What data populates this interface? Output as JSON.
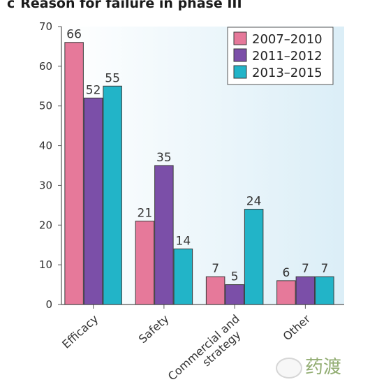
{
  "header": {
    "panel_letter": "c",
    "title": "Reason for failure in phase III"
  },
  "watermark": "药渡",
  "chart_data": {
    "type": "bar",
    "title": "Reason for failure in phase III",
    "xlabel": "",
    "ylabel": "",
    "ylim": [
      0,
      70
    ],
    "yticks": [
      0,
      10,
      20,
      30,
      40,
      50,
      60,
      70
    ],
    "grid": false,
    "legend_position": "top-right",
    "categories": [
      "Efficacy",
      "Safety",
      "Commercial and strategy",
      "Other"
    ],
    "series": [
      {
        "name": "2007–2010",
        "color": "#e6799a",
        "values": [
          66,
          21,
          7,
          6
        ]
      },
      {
        "name": "2011–2012",
        "color": "#7b4fa8",
        "values": [
          52,
          35,
          5,
          7
        ]
      },
      {
        "name": "2013–2015",
        "color": "#22b4c8",
        "values": [
          55,
          14,
          24,
          7
        ]
      }
    ]
  }
}
